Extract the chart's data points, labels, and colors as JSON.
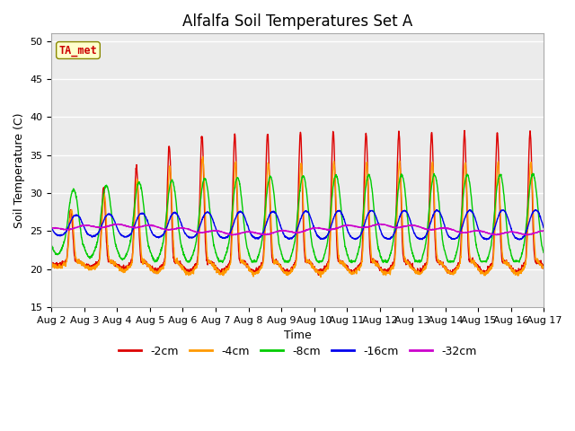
{
  "title": "Alfalfa Soil Temperatures Set A",
  "xlabel": "Time",
  "ylabel": "Soil Temperature (C)",
  "ylim": [
    15,
    51
  ],
  "yticks": [
    15,
    20,
    25,
    30,
    35,
    40,
    45,
    50
  ],
  "n_days": 15,
  "series_labels": [
    "-2cm",
    "-4cm",
    "-8cm",
    "-16cm",
    "-32cm"
  ],
  "series_colors": [
    "#dd0000",
    "#ff9900",
    "#00cc00",
    "#0000ee",
    "#cc00cc"
  ],
  "annotation_label": "TA_met",
  "annotation_color": "#cc0000",
  "annotation_bg": "#ffffcc",
  "annotation_border": "#888800",
  "background_inner": "#ebebeb",
  "background_outer": "#ffffff",
  "title_fontsize": 12,
  "axis_label_fontsize": 9,
  "tick_fontsize": 8,
  "legend_fontsize": 9,
  "x_tick_labels": [
    "Aug 2",
    "Aug 3",
    "Aug 4",
    "Aug 5",
    "Aug 6",
    "Aug 7",
    "Aug 8",
    "Aug 9",
    "Aug 10",
    "Aug 11",
    "Aug 12",
    "Aug 13",
    "Aug 14",
    "Aug 15",
    "Aug 16",
    "Aug 17"
  ]
}
